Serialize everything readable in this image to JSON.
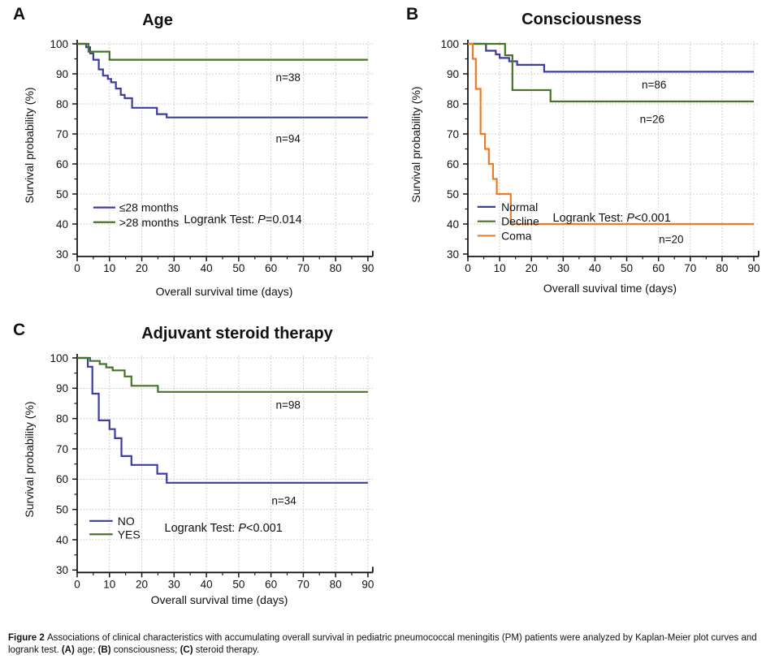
{
  "figure": {
    "caption": [
      {
        "text": "Figure 2 ",
        "bold": true
      },
      {
        "text": "Associations of clinical characteristics with accumulating overall survival in pediatric pneumococcal meningitis (PM) patients were analyzed by Kaplan-Meier plot curves and logrank test. ",
        "bold": false
      },
      {
        "text": "(A)",
        "bold": true
      },
      {
        "text": " age; ",
        "bold": false
      },
      {
        "text": "(B)",
        "bold": true
      },
      {
        "text": " consciousness; ",
        "bold": false
      },
      {
        "text": "(C)",
        "bold": true
      },
      {
        "text": " steroid therapy.",
        "bold": false
      }
    ]
  },
  "colors": {
    "blue": "#3c3d9c",
    "green": "#467328",
    "orange": "#e97c2b",
    "grid": "#c3c3c3",
    "axis": "#161616",
    "text": "#111111"
  },
  "chart_data": [
    {
      "type": "line",
      "kaplan_meier": true,
      "panel_letter": "A",
      "title": "Age",
      "xlabel": "Overall survival time (days)",
      "ylabel": "Survival probability (%)",
      "xlim": [
        0,
        90
      ],
      "ylim": [
        30,
        100
      ],
      "xticks": [
        0,
        10,
        20,
        30,
        40,
        50,
        60,
        70,
        80,
        90
      ],
      "yticks": [
        30,
        40,
        50,
        60,
        70,
        80,
        90,
        100
      ],
      "grid": true,
      "logrank": {
        "prefix": "Logrank Test: ",
        "p": "P",
        "value": "=0.014",
        "pos": [
          51.3,
          41.6
        ]
      },
      "legend": {
        "line_x": [
          5,
          11.8
        ],
        "label_x": 13,
        "rows_y": [
          45.5,
          40.6
        ]
      },
      "series": [
        {
          "name": "≤28 months",
          "color": "blue",
          "n_label": "n=94",
          "n_pos": [
            65.3,
            68.4
          ],
          "points": [
            [
              0,
              100
            ],
            [
              2.8,
              98.9
            ],
            [
              4,
              96.8
            ],
            [
              5,
              94.7
            ],
            [
              6.7,
              91.5
            ],
            [
              8,
              89.4
            ],
            [
              9.5,
              88.3
            ],
            [
              10.5,
              87.2
            ],
            [
              12,
              85.1
            ],
            [
              13.5,
              83
            ],
            [
              14.7,
              81.9
            ],
            [
              17,
              78.7
            ],
            [
              24.7,
              76.6
            ],
            [
              27.7,
              75.5
            ],
            [
              90,
              75.5
            ]
          ]
        },
        {
          "name": ">28 months",
          "color": "green",
          "n_label": "n=38",
          "n_pos": [
            65.3,
            88.9
          ],
          "points": [
            [
              0,
              100
            ],
            [
              3.5,
              97.4
            ],
            [
              10,
              94.7
            ],
            [
              90,
              94.7
            ]
          ]
        }
      ]
    },
    {
      "type": "line",
      "kaplan_meier": true,
      "panel_letter": "B",
      "title": "Consciousness",
      "xlabel": "Overall suvival time (days)",
      "ylabel": "Survival probability (%)",
      "xlim": [
        0,
        90
      ],
      "ylim": [
        30,
        100
      ],
      "xticks": [
        0,
        10,
        20,
        30,
        40,
        50,
        60,
        70,
        80,
        90
      ],
      "yticks": [
        30,
        40,
        50,
        60,
        70,
        80,
        90,
        100
      ],
      "grid": true,
      "logrank": {
        "prefix": "Logrank Test: ",
        "p": "P",
        "value": "<0.001",
        "pos": [
          45.3,
          42.2
        ]
      },
      "legend": {
        "line_x": [
          3,
          8.7
        ],
        "label_x": 10.5,
        "rows_y": [
          45.7,
          40.9,
          36.1
        ]
      },
      "series": [
        {
          "name": "Normal",
          "color": "blue",
          "n_label": "n=86",
          "n_pos": [
            58.6,
            86.5
          ],
          "points": [
            [
              0,
              100
            ],
            [
              5.7,
              97.7
            ],
            [
              8.8,
              96.5
            ],
            [
              10,
              95.3
            ],
            [
              13,
              94.2
            ],
            [
              15.5,
              93
            ],
            [
              24,
              90.7
            ],
            [
              90,
              90.7
            ]
          ]
        },
        {
          "name": "Decline",
          "color": "green",
          "n_label": "n=26",
          "n_pos": [
            58,
            75
          ],
          "points": [
            [
              0,
              100
            ],
            [
              11.7,
              96.2
            ],
            [
              14,
              84.6
            ],
            [
              26,
              80.8
            ],
            [
              90,
              80.8
            ]
          ]
        },
        {
          "name": "Coma",
          "color": "orange",
          "n_label": "n=20",
          "n_pos": [
            64,
            34.9
          ],
          "points": [
            [
              0,
              100
            ],
            [
              1.5,
              95
            ],
            [
              2.5,
              85
            ],
            [
              4,
              70
            ],
            [
              5.4,
              65
            ],
            [
              6.6,
              60
            ],
            [
              7.9,
              55
            ],
            [
              9.1,
              50
            ],
            [
              13.5,
              40
            ],
            [
              90,
              40
            ]
          ]
        }
      ]
    },
    {
      "type": "line",
      "kaplan_meier": true,
      "panel_letter": "C",
      "title": "Adjuvant steroid therapy",
      "xlabel": "Overall survival time (days)",
      "ylabel": "Survival probability (%)",
      "xlim": [
        0,
        90
      ],
      "ylim": [
        30,
        100
      ],
      "xticks": [
        0,
        10,
        20,
        30,
        40,
        50,
        60,
        70,
        80,
        90
      ],
      "yticks": [
        30,
        40,
        50,
        60,
        70,
        80,
        90,
        100
      ],
      "grid": true,
      "logrank": {
        "prefix": "Logrank Test: ",
        "p": "P",
        "value": "<0.001",
        "pos": [
          45.3,
          44
        ]
      },
      "legend": {
        "line_x": [
          3.8,
          11
        ],
        "label_x": 12.5,
        "rows_y": [
          46.2,
          41.8
        ]
      },
      "series": [
        {
          "name": "NO",
          "color": "blue",
          "n_label": "n=34",
          "n_pos": [
            64,
            53
          ],
          "points": [
            [
              0,
              100
            ],
            [
              3.3,
              97.1
            ],
            [
              4.7,
              88.2
            ],
            [
              6.7,
              79.4
            ],
            [
              10,
              76.5
            ],
            [
              11.7,
              73.5
            ],
            [
              13.7,
              67.6
            ],
            [
              16.8,
              64.7
            ],
            [
              24.8,
              61.8
            ],
            [
              27.7,
              58.8
            ],
            [
              90,
              58.8
            ]
          ]
        },
        {
          "name": "YES",
          "color": "green",
          "n_label": "n=98",
          "n_pos": [
            65.3,
            84.5
          ],
          "points": [
            [
              0,
              100
            ],
            [
              4,
              99
            ],
            [
              7,
              98
            ],
            [
              9,
              96.9
            ],
            [
              11,
              95.9
            ],
            [
              14.7,
              93.9
            ],
            [
              16.8,
              90.8
            ],
            [
              25,
              88.8
            ],
            [
              90,
              88.8
            ]
          ]
        }
      ]
    }
  ]
}
